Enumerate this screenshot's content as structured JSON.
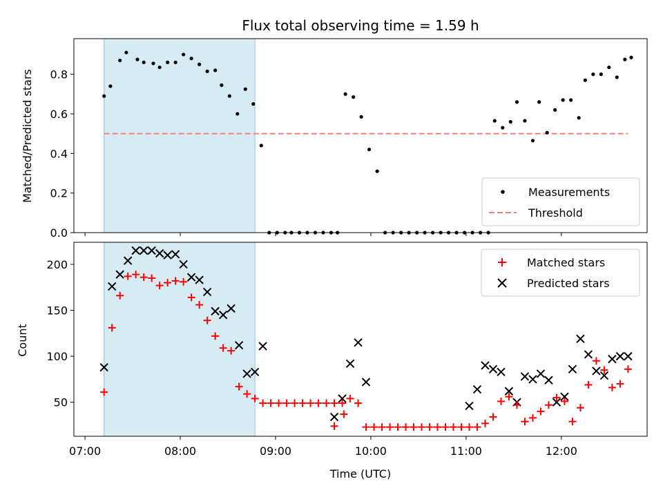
{
  "chart_data": [
    {
      "type": "scatter",
      "panel": "top",
      "title": "Flux total observing time = 1.59 h",
      "ylabel": "Matched/Predicted stars",
      "xlabel": "",
      "ylim": [
        0,
        0.98
      ],
      "yticks": [
        0.0,
        0.2,
        0.4,
        0.6,
        0.8
      ],
      "ytick_labels": [
        "0.0",
        "0.2",
        "0.4",
        "0.6",
        "0.8"
      ],
      "xlim_minutes": [
        -7,
        354
      ],
      "x_unit": "minutes after 07:00 UTC",
      "highlight_span_minutes": [
        12,
        107
      ],
      "highlight_color": "#add8e6",
      "threshold": {
        "name": "Threshold",
        "value": 0.5,
        "x_range_minutes": [
          12,
          342
        ],
        "color": "#f08080"
      },
      "legend_position": "lower-right",
      "series": [
        {
          "name": "Measurements",
          "marker": "dot",
          "color": "#000000",
          "x": [
            12,
            16,
            22,
            26,
            33,
            37,
            43,
            47,
            52,
            57,
            62,
            67,
            72,
            77,
            82,
            86,
            91,
            96,
            101,
            106,
            111,
            116,
            121,
            126,
            130,
            135,
            140,
            145,
            150,
            155,
            159,
            164,
            169,
            174,
            179,
            184,
            189,
            194,
            199,
            204,
            209,
            214,
            219,
            224,
            229,
            234,
            239,
            244,
            249,
            254,
            258,
            263,
            268,
            272,
            277,
            282,
            286,
            291,
            296,
            301,
            306,
            311,
            315,
            320,
            325,
            330,
            335,
            340,
            344
          ],
          "y": [
            0.69,
            0.74,
            0.87,
            0.91,
            0.875,
            0.86,
            0.855,
            0.835,
            0.86,
            0.86,
            0.9,
            0.88,
            0.85,
            0.815,
            0.82,
            0.745,
            0.69,
            0.6,
            0.725,
            0.65,
            0.44,
            0,
            0,
            0,
            0,
            0,
            0,
            0,
            0,
            0,
            0,
            0.7,
            0.685,
            0.585,
            0.42,
            0.31,
            0,
            0,
            0,
            0,
            0,
            0,
            0,
            0,
            0,
            0,
            0,
            0,
            0,
            0,
            0.565,
            0.53,
            0.56,
            0.66,
            0.565,
            0.465,
            0.66,
            0.505,
            0.62,
            0.67,
            0.67,
            0.58,
            0.77,
            0.8,
            0.8,
            0.835,
            0.785,
            0.875,
            0.885
          ]
        }
      ],
      "x_indices_with_values": "skip-nan"
    },
    {
      "type": "scatter",
      "panel": "bottom",
      "title": "",
      "ylabel": "Count",
      "xlabel": "Time (UTC)",
      "ylim": [
        13,
        224
      ],
      "yticks": [
        50,
        100,
        150,
        200
      ],
      "ytick_labels": [
        "50",
        "100",
        "150",
        "200"
      ],
      "xlim_minutes": [
        -7,
        354
      ],
      "xticks_minutes": [
        0,
        60,
        120,
        180,
        240,
        300
      ],
      "xtick_labels": [
        "07:00",
        "08:00",
        "09:00",
        "10:00",
        "11:00",
        "12:00"
      ],
      "highlight_span_minutes": [
        12,
        107
      ],
      "legend_position": "upper-right",
      "series": [
        {
          "name": "Matched stars",
          "marker": "plus",
          "color": "#ff0000",
          "x": [
            12,
            17,
            22,
            27,
            32,
            37,
            42,
            47,
            52,
            57,
            62,
            67,
            72,
            77,
            82,
            87,
            92,
            97,
            102,
            107,
            112,
            117,
            122,
            127,
            132,
            137,
            142,
            147,
            152,
            157,
            162,
            157,
            163,
            167,
            172,
            177,
            182,
            187,
            192,
            197,
            202,
            207,
            212,
            217,
            222,
            227,
            232,
            237,
            242,
            247,
            252,
            257,
            262,
            267,
            272,
            277,
            282,
            287,
            292,
            297,
            302,
            307,
            312,
            317,
            322,
            327,
            332,
            337,
            342
          ],
          "y": [
            61,
            131,
            166,
            187,
            189,
            186,
            185,
            177,
            180,
            182,
            181,
            164,
            156,
            139,
            122,
            109,
            106,
            67,
            59,
            54,
            49,
            49,
            49,
            49,
            49,
            49,
            49,
            49,
            49,
            49,
            49,
            24,
            37,
            54,
            49,
            23,
            23,
            23,
            23,
            23,
            23,
            23,
            23,
            23,
            23,
            23,
            23,
            23,
            23,
            23,
            27,
            34,
            51,
            56,
            47,
            29,
            33,
            40,
            47,
            55,
            51,
            29,
            44,
            69,
            95,
            85,
            66,
            70,
            86
          ]
        },
        {
          "name": "Predicted stars",
          "marker": "x",
          "color": "#000000",
          "x": [
            12,
            17,
            22,
            27,
            32,
            37,
            42,
            47,
            52,
            57,
            62,
            67,
            72,
            77,
            82,
            87,
            92,
            97,
            102,
            107,
            112,
            157,
            162,
            167,
            172,
            177,
            242,
            247,
            252,
            257,
            262,
            267,
            272,
            277,
            282,
            287,
            292,
            297,
            302,
            307,
            312,
            317,
            322,
            327,
            332,
            337,
            342
          ],
          "y": [
            88,
            176,
            189,
            204,
            215,
            215,
            215,
            212,
            210,
            211,
            200,
            186,
            183,
            170,
            149,
            145,
            152,
            112,
            81,
            83,
            111,
            34,
            54,
            92,
            115,
            72,
            46,
            64,
            90,
            86,
            83,
            62,
            50,
            78,
            75,
            81,
            74,
            50,
            56,
            86,
            119,
            102,
            84,
            79,
            97,
            100,
            100
          ]
        }
      ]
    }
  ],
  "legend": {
    "top": [
      "Measurements",
      "Threshold"
    ],
    "bottom": [
      "Matched stars",
      "Predicted stars"
    ]
  }
}
